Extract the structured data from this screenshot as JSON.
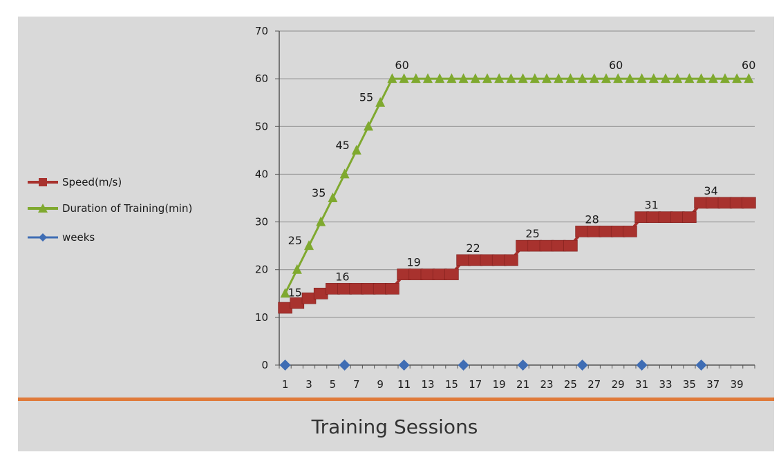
{
  "colors": {
    "background": "#d9d9d9",
    "speed": "#a8322e",
    "duration": "#7fa92f",
    "weeks": "#3f6db4",
    "divider": "#e07a3a",
    "grid": "#8c8c8c"
  },
  "chart_data": {
    "type": "line",
    "title": "",
    "xlabel": "Training Sessions",
    "ylabel": "",
    "ylim": [
      0,
      70
    ],
    "y_ticks": [
      "0",
      "10",
      "20",
      "30",
      "40",
      "50",
      "60",
      "70"
    ],
    "x_tick_labels": [
      "1",
      "3",
      "5",
      "7",
      "9",
      "11",
      "13",
      "15",
      "17",
      "19",
      "21",
      "23",
      "25",
      "27",
      "29",
      "31",
      "33",
      "35",
      "37",
      "39"
    ],
    "x": [
      1,
      2,
      3,
      4,
      5,
      6,
      7,
      8,
      9,
      10,
      11,
      12,
      13,
      14,
      15,
      16,
      17,
      18,
      19,
      20,
      21,
      22,
      23,
      24,
      25,
      26,
      27,
      28,
      29,
      30,
      31,
      32,
      33,
      34,
      35,
      36,
      37,
      38,
      39,
      40
    ],
    "grid": true,
    "legend_position": "left",
    "series": [
      {
        "name": "Speed(m/s)",
        "marker": "square",
        "values": [
          12,
          13,
          14,
          15,
          16,
          16,
          16,
          16,
          16,
          16,
          19,
          19,
          19,
          19,
          19,
          22,
          22,
          22,
          22,
          22,
          25,
          25,
          25,
          25,
          25,
          28,
          28,
          28,
          28,
          28,
          31,
          31,
          31,
          31,
          31,
          34,
          34,
          34,
          34,
          34
        ],
        "data_labels": [
          {
            "x": 5,
            "text": "16"
          },
          {
            "x": 11,
            "text": "19"
          },
          {
            "x": 16,
            "text": "22"
          },
          {
            "x": 21,
            "text": "25"
          },
          {
            "x": 26,
            "text": "28"
          },
          {
            "x": 31,
            "text": "31"
          },
          {
            "x": 36,
            "text": "34"
          }
        ]
      },
      {
        "name": "Duration of Training(min)",
        "marker": "triangle",
        "values": [
          15,
          20,
          25,
          30,
          35,
          40,
          45,
          50,
          55,
          60,
          60,
          60,
          60,
          60,
          60,
          60,
          60,
          60,
          60,
          60,
          60,
          60,
          60,
          60,
          60,
          60,
          60,
          60,
          60,
          60,
          60,
          60,
          60,
          60,
          60,
          60,
          60,
          60,
          60,
          60
        ],
        "data_labels": [
          {
            "x": 1,
            "text": "15"
          },
          {
            "x": 3,
            "text": "25"
          },
          {
            "x": 5,
            "text": "35"
          },
          {
            "x": 7,
            "text": "45"
          },
          {
            "x": 9,
            "text": "55"
          },
          {
            "x": 10,
            "text": "60"
          },
          {
            "x": 28,
            "text": "60"
          },
          {
            "x": 40,
            "text": "60"
          }
        ]
      },
      {
        "name": "weeks",
        "marker": "diamond",
        "x": [
          1,
          6,
          11,
          16,
          21,
          26,
          31,
          36
        ],
        "values": [
          0,
          0,
          0,
          0,
          0,
          0,
          0,
          0
        ]
      }
    ]
  }
}
